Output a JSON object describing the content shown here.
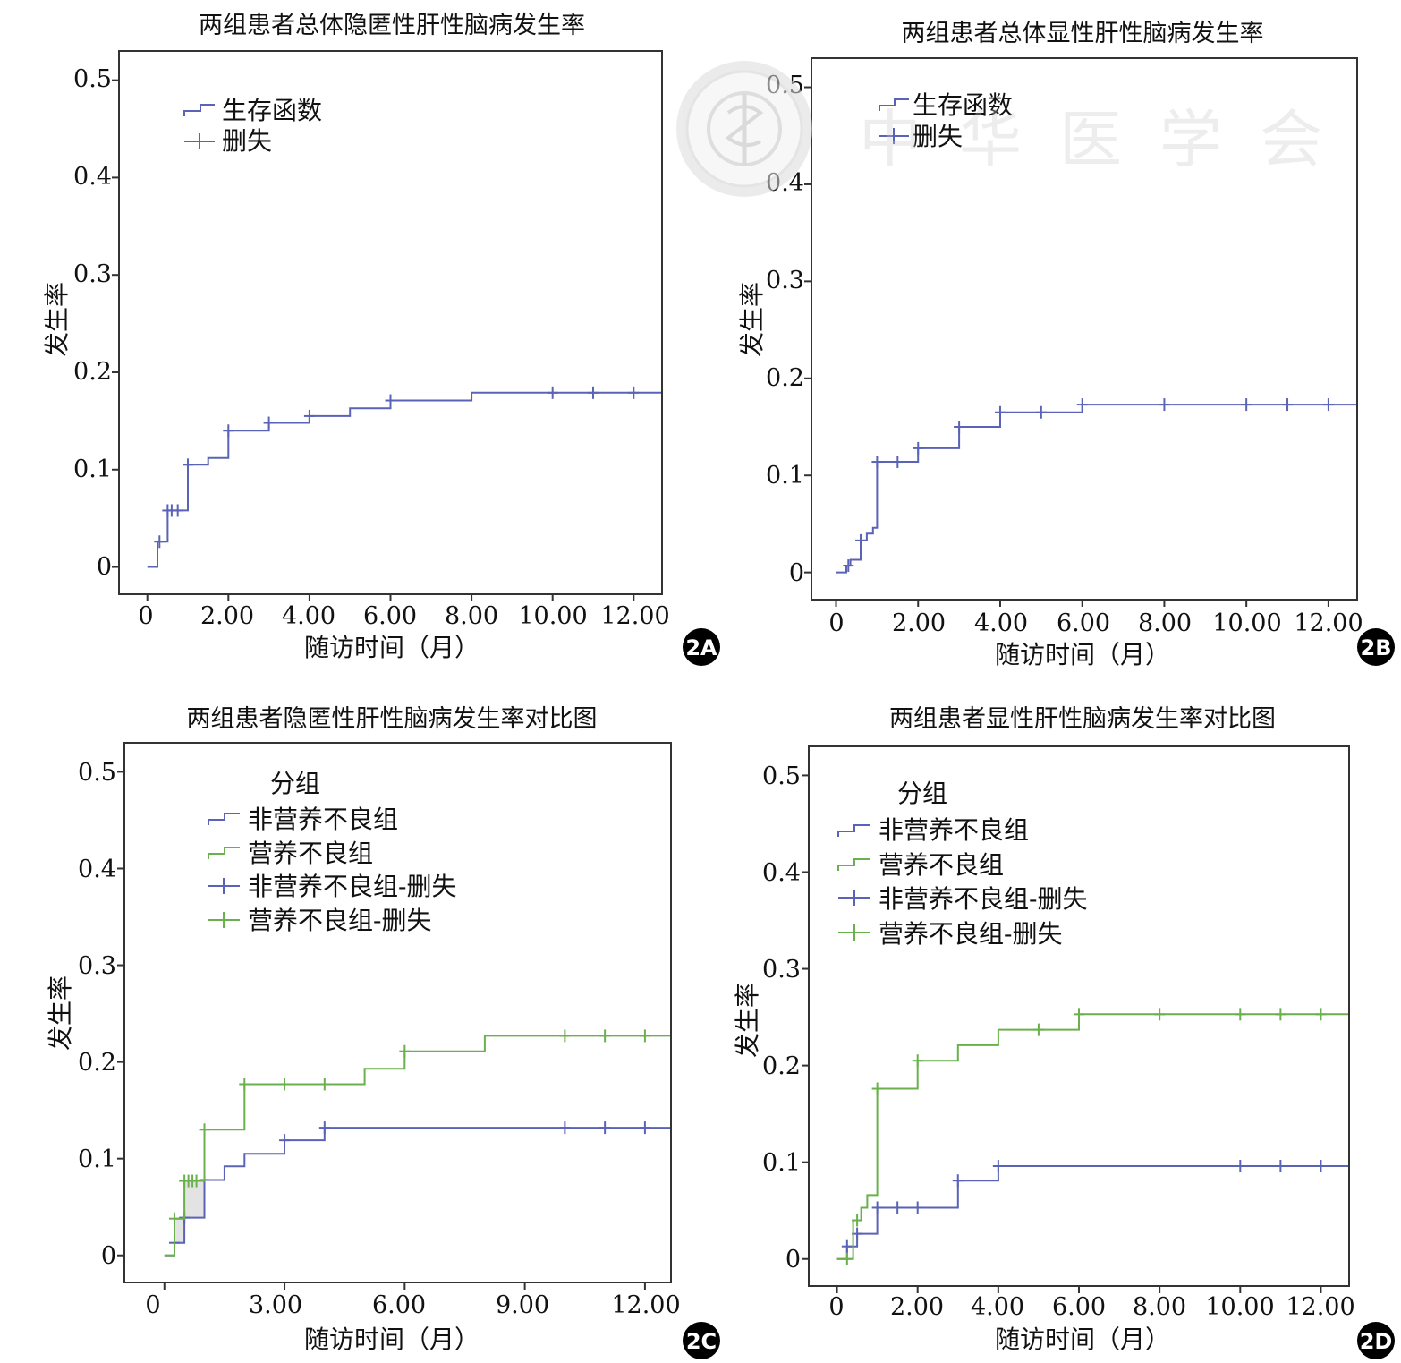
{
  "figure": {
    "watermark_text": "中华医学会",
    "colors": {
      "blue": "#5b63b6",
      "green": "#6ab04c",
      "axis": "#333333",
      "text": "#111111",
      "shade": "#cccccc"
    }
  },
  "chart_data": [
    {
      "id": "2A",
      "type": "line",
      "step": true,
      "title": "两组患者总体隐匿性肝性脑病发生率",
      "xlabel": "随访时间（月）",
      "ylabel": "发生率",
      "xlim": [
        -0.7,
        12.7
      ],
      "ylim": [
        -0.028,
        0.53
      ],
      "xticks": [
        0,
        2,
        4,
        6,
        8,
        10,
        12
      ],
      "xtick_labels": [
        "0",
        "2.00",
        "4.00",
        "6.00",
        "8.00",
        "10.00",
        "12.00"
      ],
      "yticks": [
        0,
        0.1,
        0.2,
        0.3,
        0.4,
        0.5
      ],
      "ytick_labels": [
        "0",
        "0.1",
        "0.2",
        "0.3",
        "0.4",
        "0.5"
      ],
      "legend": {
        "title": "",
        "entries": [
          {
            "label": "生存函数",
            "kind": "step",
            "color": "#5b63b6"
          },
          {
            "label": "删失",
            "kind": "cross",
            "color": "#5b63b6"
          }
        ]
      },
      "series": [
        {
          "name": "生存函数",
          "color": "#5b63b6",
          "x": [
            0,
            0.25,
            0.5,
            1,
            1.5,
            2,
            3,
            4,
            5,
            6,
            8,
            12.7
          ],
          "y": [
            0,
            0.026,
            0.058,
            0.105,
            0.112,
            0.14,
            0.148,
            0.155,
            0.163,
            0.171,
            0.179,
            0.179
          ],
          "censored": [
            [
              0.3,
              0.026
            ],
            [
              0.5,
              0.058
            ],
            [
              0.6,
              0.058
            ],
            [
              0.75,
              0.058
            ],
            [
              1,
              0.105
            ],
            [
              2,
              0.14
            ],
            [
              3,
              0.148
            ],
            [
              4,
              0.155
            ],
            [
              6,
              0.171
            ],
            [
              10,
              0.179
            ],
            [
              11,
              0.179
            ],
            [
              12,
              0.179
            ]
          ]
        }
      ]
    },
    {
      "id": "2B",
      "type": "line",
      "step": true,
      "title": "两组患者总体显性肝性脑病发生率",
      "xlabel": "随访时间（月）",
      "ylabel": "发生率",
      "xlim": [
        -0.6,
        12.7
      ],
      "ylim": [
        -0.028,
        0.53
      ],
      "xticks": [
        0,
        2,
        4,
        6,
        8,
        10,
        12
      ],
      "xtick_labels": [
        "0",
        "2.00",
        "4.00",
        "6.00",
        "8.00",
        "10.00",
        "12.00"
      ],
      "yticks": [
        0,
        0.1,
        0.2,
        0.3,
        0.4,
        0.5
      ],
      "ytick_labels": [
        "0",
        "0.1",
        "0.2",
        "0.3",
        "0.4",
        "0.5"
      ],
      "legend": {
        "title": "",
        "entries": [
          {
            "label": "生存函数",
            "kind": "step",
            "color": "#5b63b6"
          },
          {
            "label": "删失",
            "kind": "cross",
            "color": "#5b63b6"
          }
        ]
      },
      "series": [
        {
          "name": "生存函数",
          "color": "#5b63b6",
          "x": [
            0,
            0.25,
            0.35,
            0.6,
            0.75,
            0.9,
            1,
            2,
            3,
            4,
            6,
            12.7
          ],
          "y": [
            0,
            0.007,
            0.013,
            0.033,
            0.04,
            0.046,
            0.114,
            0.128,
            0.15,
            0.165,
            0.173,
            0.173
          ],
          "censored": [
            [
              0.3,
              0.007
            ],
            [
              0.6,
              0.033
            ],
            [
              1,
              0.114
            ],
            [
              1.5,
              0.114
            ],
            [
              2,
              0.128
            ],
            [
              3,
              0.15
            ],
            [
              4,
              0.165
            ],
            [
              5,
              0.165
            ],
            [
              6,
              0.173
            ],
            [
              8,
              0.173
            ],
            [
              10,
              0.173
            ],
            [
              11,
              0.173
            ],
            [
              12,
              0.173
            ]
          ]
        }
      ]
    },
    {
      "id": "2C",
      "type": "line",
      "step": true,
      "title": "两组患者隐匿性肝性脑病发生率对比图",
      "xlabel": "随访时间（月）",
      "ylabel": "发生率",
      "xlim": [
        -1.0,
        12.65
      ],
      "ylim": [
        -0.028,
        0.53
      ],
      "xticks": [
        0,
        3,
        6,
        9,
        12
      ],
      "xtick_labels": [
        "0",
        "3.00",
        "6.00",
        "9.00",
        "12.00"
      ],
      "yticks": [
        0,
        0.1,
        0.2,
        0.3,
        0.4,
        0.5
      ],
      "ytick_labels": [
        "0",
        "0.1",
        "0.2",
        "0.3",
        "0.4",
        "0.5"
      ],
      "legend": {
        "title": "分组",
        "entries": [
          {
            "label": "非营养不良组",
            "kind": "step",
            "color": "#5b63b6"
          },
          {
            "label": "营养不良组",
            "kind": "step",
            "color": "#6ab04c"
          },
          {
            "label": "非营养不良组-删失",
            "kind": "cross",
            "color": "#5b63b6"
          },
          {
            "label": "营养不良组-删失",
            "kind": "cross",
            "color": "#6ab04c"
          }
        ]
      },
      "series": [
        {
          "name": "非营养不良组",
          "color": "#5b63b6",
          "x": [
            0,
            0.25,
            0.5,
            1,
            1.5,
            2,
            3,
            4,
            12.65
          ],
          "y": [
            0,
            0.013,
            0.039,
            0.078,
            0.092,
            0.105,
            0.119,
            0.132,
            0.132
          ],
          "censored": [
            [
              0.25,
              0.013
            ],
            [
              0.5,
              0.039
            ],
            [
              1,
              0.078
            ],
            [
              3,
              0.119
            ],
            [
              4,
              0.132
            ],
            [
              10,
              0.132
            ],
            [
              11,
              0.132
            ],
            [
              12,
              0.132
            ]
          ]
        },
        {
          "name": "营养不良组",
          "color": "#6ab04c",
          "x": [
            0,
            0.25,
            0.5,
            1,
            2,
            3,
            5,
            6,
            8,
            12.65
          ],
          "y": [
            0,
            0.038,
            0.077,
            0.13,
            0.177,
            0.177,
            0.193,
            0.211,
            0.227,
            0.227
          ],
          "censored": [
            [
              0.25,
              0.038
            ],
            [
              0.5,
              0.077
            ],
            [
              0.6,
              0.077
            ],
            [
              0.7,
              0.077
            ],
            [
              0.8,
              0.077
            ],
            [
              1,
              0.13
            ],
            [
              2,
              0.177
            ],
            [
              3,
              0.177
            ],
            [
              4,
              0.177
            ],
            [
              6,
              0.211
            ],
            [
              10,
              0.227
            ],
            [
              11,
              0.227
            ],
            [
              12,
              0.227
            ]
          ]
        }
      ]
    },
    {
      "id": "2D",
      "type": "line",
      "step": true,
      "title": "两组患者显性肝性脑病发生率对比图",
      "xlabel": "随访时间（月）",
      "ylabel": "发生率",
      "xlim": [
        -0.7,
        12.7
      ],
      "ylim": [
        -0.028,
        0.53
      ],
      "xticks": [
        0,
        2,
        4,
        6,
        8,
        10,
        12
      ],
      "xtick_labels": [
        "0",
        "2.00",
        "4.00",
        "6.00",
        "8.00",
        "10.00",
        "12.00"
      ],
      "yticks": [
        0,
        0.1,
        0.2,
        0.3,
        0.4,
        0.5
      ],
      "ytick_labels": [
        "0",
        "0.1",
        "0.2",
        "0.3",
        "0.4",
        "0.5"
      ],
      "legend": {
        "title": "分组",
        "entries": [
          {
            "label": "非营养不良组",
            "kind": "step",
            "color": "#5b63b6"
          },
          {
            "label": "营养不良组",
            "kind": "step",
            "color": "#6ab04c"
          },
          {
            "label": "非营养不良组-删失",
            "kind": "cross",
            "color": "#5b63b6"
          },
          {
            "label": "营养不良组-删失",
            "kind": "cross",
            "color": "#6ab04c"
          }
        ]
      },
      "series": [
        {
          "name": "非营养不良组",
          "color": "#5b63b6",
          "x": [
            0,
            0.25,
            0.5,
            1,
            3,
            4,
            12.7
          ],
          "y": [
            0,
            0.013,
            0.026,
            0.053,
            0.081,
            0.096,
            0.096
          ],
          "censored": [
            [
              0.25,
              0.013
            ],
            [
              0.5,
              0.026
            ],
            [
              1,
              0.053
            ],
            [
              1.5,
              0.053
            ],
            [
              2,
              0.053
            ],
            [
              3,
              0.081
            ],
            [
              4,
              0.096
            ],
            [
              10,
              0.096
            ],
            [
              11,
              0.096
            ],
            [
              12,
              0.096
            ]
          ]
        },
        {
          "name": "营养不良组",
          "color": "#6ab04c",
          "x": [
            0,
            0.25,
            0.4,
            0.6,
            0.75,
            1,
            2,
            3,
            4,
            6,
            12.7
          ],
          "y": [
            0,
            0.0,
            0.04,
            0.053,
            0.066,
            0.176,
            0.205,
            0.221,
            0.237,
            0.253,
            0.253
          ],
          "censored": [
            [
              0.25,
              0.0
            ],
            [
              0.5,
              0.04
            ],
            [
              1,
              0.176
            ],
            [
              2,
              0.205
            ],
            [
              5,
              0.237
            ],
            [
              6,
              0.253
            ],
            [
              8,
              0.253
            ],
            [
              10,
              0.253
            ],
            [
              11,
              0.253
            ],
            [
              12,
              0.253
            ]
          ]
        }
      ]
    }
  ]
}
